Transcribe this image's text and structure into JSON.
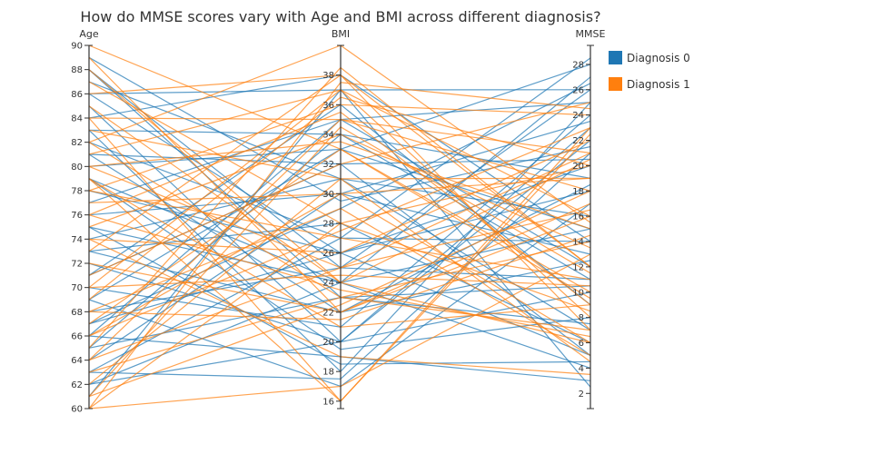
{
  "chart_data": {
    "type": "parallel_coordinates",
    "title": "How do MMSE scores vary with Age and BMI across different diagnosis?",
    "axes": [
      {
        "name": "Age",
        "range": [
          60,
          90
        ],
        "ticks": [
          60,
          62,
          64,
          66,
          68,
          70,
          72,
          74,
          76,
          78,
          80,
          82,
          84,
          86,
          88,
          90
        ]
      },
      {
        "name": "BMI",
        "range": [
          15.5,
          40
        ],
        "ticks": [
          16,
          18,
          20,
          22,
          24,
          26,
          28,
          30,
          32,
          34,
          36,
          38
        ]
      },
      {
        "name": "MMSE",
        "range": [
          0.8,
          29.5
        ],
        "ticks": [
          2,
          4,
          6,
          8,
          10,
          12,
          14,
          16,
          18,
          20,
          22,
          24,
          26,
          28
        ]
      }
    ],
    "legend": {
      "placement": "top-right",
      "entries": [
        {
          "label": "Diagnosis 0",
          "color": "#1f77b4"
        },
        {
          "label": "Diagnosis 1",
          "color": "#ff7f0e"
        }
      ]
    },
    "series": [
      {
        "diagnosis": 0,
        "lines": [
          [
            89,
            29.5,
            21.5
          ],
          [
            88,
            23,
            10.5
          ],
          [
            88,
            25,
            26
          ],
          [
            87,
            31,
            7
          ],
          [
            86,
            37,
            2.5
          ],
          [
            85,
            20,
            23
          ],
          [
            83,
            34,
            11
          ],
          [
            83,
            18,
            25
          ],
          [
            82,
            27,
            14
          ],
          [
            81,
            32,
            5
          ],
          [
            81,
            22,
            18.5
          ],
          [
            80,
            33,
            28
          ],
          [
            79,
            19.5,
            8
          ],
          [
            78,
            26,
            20
          ],
          [
            77,
            35,
            12
          ],
          [
            75,
            24,
            27
          ],
          [
            75,
            18.5,
            4.5
          ],
          [
            74,
            31,
            16
          ],
          [
            73,
            28,
            6
          ],
          [
            72,
            20,
            22
          ],
          [
            71,
            36,
            9
          ],
          [
            70,
            21,
            24
          ],
          [
            69,
            33,
            15
          ],
          [
            68,
            25,
            11
          ],
          [
            67,
            29,
            26.5
          ],
          [
            66,
            19,
            3
          ],
          [
            65,
            34,
            19
          ],
          [
            65,
            23,
            7.5
          ],
          [
            64,
            30,
            13
          ],
          [
            63,
            17.5,
            21
          ],
          [
            63,
            27,
            28.5
          ],
          [
            62,
            20,
            10
          ],
          [
            62,
            24,
            15
          ],
          [
            61,
            37,
            26
          ],
          [
            86,
            26,
            18
          ],
          [
            84,
            38,
            14
          ],
          [
            79,
            24,
            4
          ],
          [
            76,
            30,
            23.5
          ],
          [
            73,
            22,
            12.5
          ],
          [
            71,
            32,
            20.5
          ],
          [
            69,
            17,
            17
          ],
          [
            67,
            26,
            5
          ],
          [
            66,
            35,
            25
          ]
        ]
      },
      {
        "diagnosis": 1,
        "lines": [
          [
            90,
            33,
            10
          ],
          [
            89,
            22,
            16
          ],
          [
            87,
            28,
            20
          ],
          [
            86,
            38,
            12
          ],
          [
            85,
            24,
            6
          ],
          [
            84,
            35,
            18
          ],
          [
            84,
            16,
            23
          ],
          [
            83,
            31,
            4.5
          ],
          [
            82,
            23,
            14
          ],
          [
            81,
            37,
            8
          ],
          [
            80,
            25,
            21
          ],
          [
            80,
            33.5,
            15
          ],
          [
            79,
            21,
            9
          ],
          [
            78,
            36,
            24
          ],
          [
            78,
            27,
            11
          ],
          [
            77,
            30,
            19
          ],
          [
            76,
            23.5,
            6.5
          ],
          [
            75,
            34,
            13.5
          ],
          [
            74,
            26,
            22
          ],
          [
            73,
            38,
            7
          ],
          [
            72,
            22,
            17
          ],
          [
            71,
            32,
            25
          ],
          [
            70,
            24.5,
            10.5
          ],
          [
            69,
            36.5,
            20
          ],
          [
            68,
            29,
            5
          ],
          [
            68,
            21.5,
            14.5
          ],
          [
            67,
            33,
            9.5
          ],
          [
            66,
            27.5,
            23
          ],
          [
            65,
            38.5,
            12
          ],
          [
            64,
            25,
            16.5
          ],
          [
            64,
            35,
            21
          ],
          [
            63,
            23,
            7
          ],
          [
            62,
            31,
            19
          ],
          [
            61,
            34.5,
            11.5
          ],
          [
            61,
            22.5,
            18
          ],
          [
            60,
            17,
            13
          ],
          [
            60,
            37.5,
            24.5
          ],
          [
            60,
            28,
            8.5
          ],
          [
            82,
            40,
            15.5
          ],
          [
            79,
            16,
            22.5
          ],
          [
            74,
            19,
            3.5
          ],
          [
            70,
            37,
            16
          ],
          [
            66,
            30,
            6
          ],
          [
            88,
            24,
            20.5
          ],
          [
            76,
            35.5,
            9
          ]
        ]
      }
    ]
  }
}
